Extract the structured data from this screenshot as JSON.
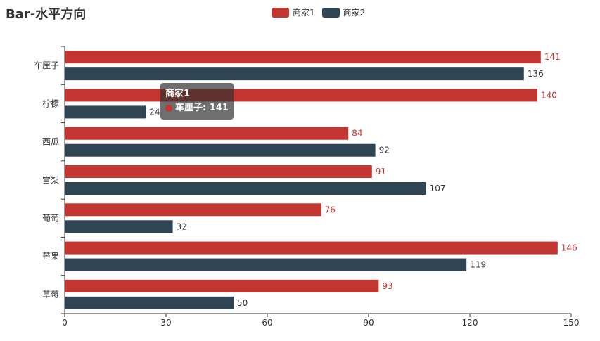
{
  "chart_data": {
    "type": "bar",
    "orientation": "horizontal",
    "title": "Bar-水平方向",
    "categories": [
      "车厘子",
      "柠檬",
      "西瓜",
      "雪梨",
      "葡萄",
      "芒果",
      "草莓"
    ],
    "series": [
      {
        "name": "商家1",
        "color": "#c23531",
        "values": [
          141,
          140,
          84,
          91,
          76,
          146,
          93
        ]
      },
      {
        "name": "商家2",
        "color": "#2f4554",
        "values": [
          136,
          24,
          92,
          107,
          32,
          119,
          50
        ]
      }
    ],
    "xlim": [
      0,
      150
    ],
    "xticks": [
      "0",
      "30",
      "60",
      "90",
      "120",
      "150"
    ],
    "legend_position": "top-center",
    "grid": false
  },
  "tooltip": {
    "title": "商家1",
    "label": "车厘子: 141",
    "color": "#c23531"
  }
}
